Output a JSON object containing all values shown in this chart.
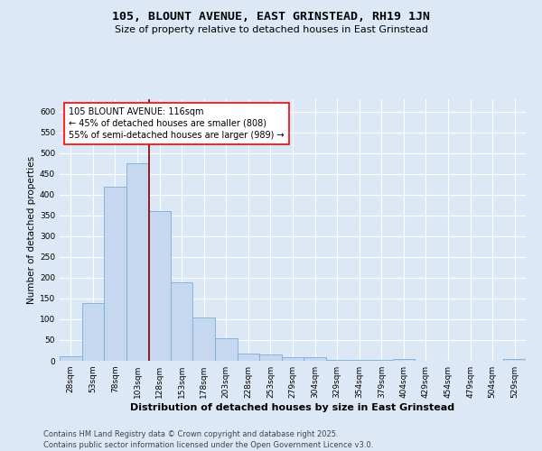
{
  "title": "105, BLOUNT AVENUE, EAST GRINSTEAD, RH19 1JN",
  "subtitle": "Size of property relative to detached houses in East Grinstead",
  "xlabel": "Distribution of detached houses by size in East Grinstead",
  "ylabel": "Number of detached properties",
  "annotation_line1": "105 BLOUNT AVENUE: 116sqm",
  "annotation_line2": "← 45% of detached houses are smaller (808)",
  "annotation_line3": "55% of semi-detached houses are larger (989) →",
  "footer": "Contains HM Land Registry data © Crown copyright and database right 2025.\nContains public sector information licensed under the Open Government Licence v3.0.",
  "bar_color": "#c5d8f0",
  "bar_edge_color": "#7bafd4",
  "vline_color": "#8b0000",
  "background_color": "#dce8f5",
  "grid_color": "#ffffff",
  "categories": [
    "28sqm",
    "53sqm",
    "78sqm",
    "103sqm",
    "128sqm",
    "153sqm",
    "178sqm",
    "203sqm",
    "228sqm",
    "253sqm",
    "279sqm",
    "304sqm",
    "329sqm",
    "354sqm",
    "379sqm",
    "404sqm",
    "429sqm",
    "454sqm",
    "479sqm",
    "504sqm",
    "529sqm"
  ],
  "values": [
    10,
    140,
    420,
    475,
    360,
    190,
    105,
    55,
    18,
    15,
    8,
    8,
    3,
    2,
    2,
    5,
    1,
    0,
    0,
    0,
    4
  ],
  "vline_x_index": 3.52,
  "ylim": [
    0,
    630
  ],
  "yticks": [
    0,
    50,
    100,
    150,
    200,
    250,
    300,
    350,
    400,
    450,
    500,
    550,
    600
  ],
  "title_fontsize": 9.5,
  "subtitle_fontsize": 8,
  "ylabel_fontsize": 7.5,
  "xlabel_fontsize": 8,
  "tick_fontsize": 6.5,
  "annotation_fontsize": 7,
  "footer_fontsize": 6,
  "figsize": [
    6.0,
    5.0
  ],
  "dpi": 100
}
